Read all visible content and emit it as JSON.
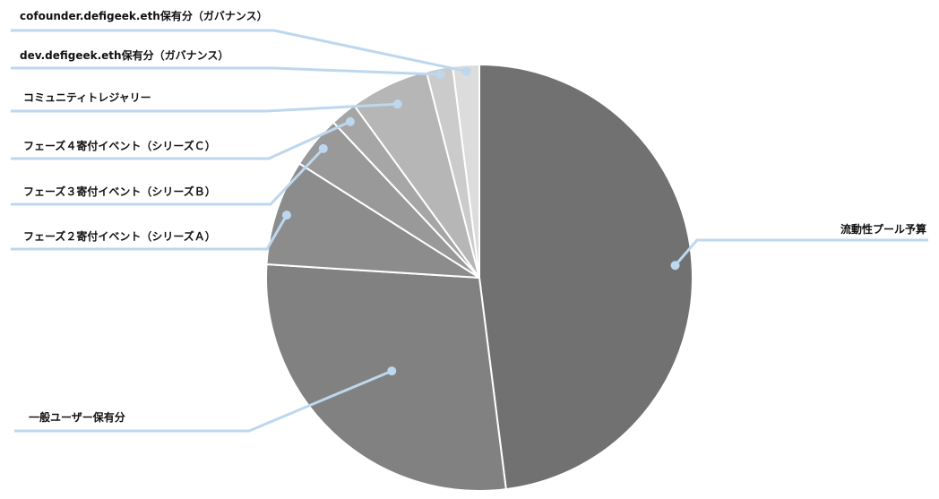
{
  "chart_data": {
    "type": "pie",
    "title": "",
    "slices": [
      {
        "label": "流動性プール予算",
        "value": 48.0,
        "color": "#717171"
      },
      {
        "label": "一般ユーザー保有分",
        "value": 28.0,
        "color": "#818181"
      },
      {
        "label": "フェーズ２寄付イベント（シリーズＡ）",
        "value": 8.0,
        "color": "#8c8c8c"
      },
      {
        "label": "フェーズ３寄付イベント（シリーズＢ）",
        "value": 4.0,
        "color": "#999999"
      },
      {
        "label": "フェーズ４寄付イベント（シリーズＣ）",
        "value": 2.0,
        "color": "#a6a6a6"
      },
      {
        "label": "コミュニティトレジャリー",
        "value": 6.0,
        "color": "#b6b6b6"
      },
      {
        "label": "dev.defigeek.eth保有分（ガバナンス）",
        "value": 2.0,
        "color": "#cbcbcb"
      },
      {
        "label": "cofounder.defigeek.eth保有分（ガバナンス）",
        "value": 2.0,
        "color": "#dcdcdc"
      }
    ],
    "leader_color": "#bdd7ee",
    "slice_border_color": "#ffffff",
    "legend": "none"
  }
}
